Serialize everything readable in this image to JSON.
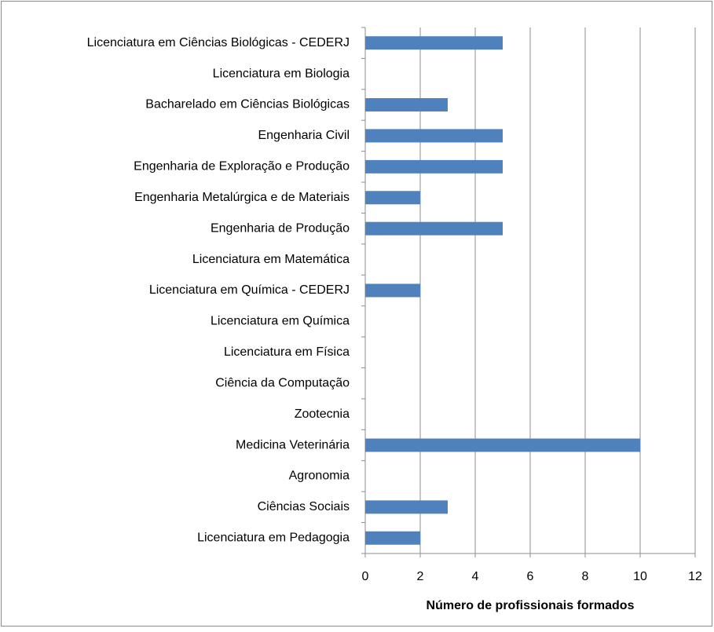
{
  "chart_data": {
    "type": "bar",
    "orientation": "horizontal",
    "x_label": "Número de profissionais formados",
    "categories": [
      "Licenciatura em Ciências Biológicas - CEDERJ",
      "Licenciatura em Biologia",
      "Bacharelado em Ciências Biológicas",
      "Engenharia Civil",
      "Engenharia de Exploração e Produção",
      "Engenharia Metalúrgica e de Materiais",
      "Engenharia de Produção",
      "Licenciatura em Matemática",
      "Licenciatura em Química - CEDERJ",
      "Licenciatura em Química",
      "Licenciatura em Física",
      "Ciência da Computação",
      "Zootecnia",
      "Medicina Veterinária",
      "Agronomia",
      "Ciências Sociais",
      "Licenciatura em Pedagogia"
    ],
    "values": [
      5,
      0,
      3,
      5,
      5,
      2,
      5,
      0,
      2,
      0,
      0,
      0,
      0,
      10,
      0,
      3,
      2
    ],
    "color": "#4f81bd",
    "xlim": [
      0,
      12
    ],
    "xticks": [
      0,
      2,
      4,
      6,
      8,
      10,
      12
    ],
    "grid": true
  }
}
